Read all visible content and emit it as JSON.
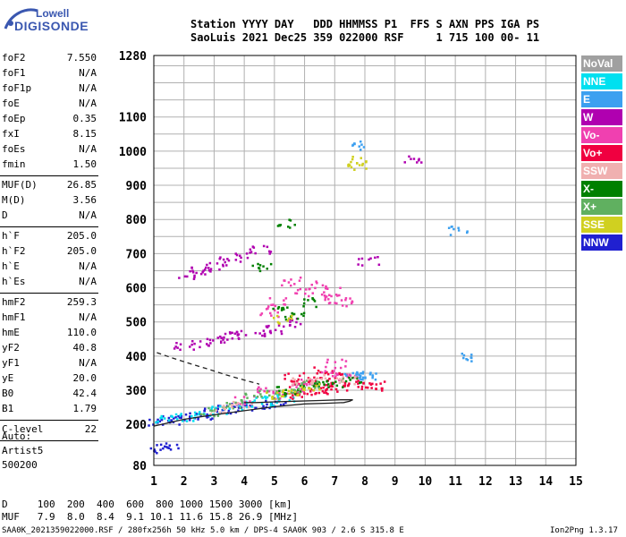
{
  "logo": {
    "line1": "Lowell",
    "line2": "DIGISONDE"
  },
  "header": {
    "labels": "Station YYYY DAY   DDD HHMMSS P1  FFS S AXN PPS IGA PS",
    "values": "SaoLuis 2021 Dec25 359 022000 RSF     1 715 100 00- 11"
  },
  "params": [
    {
      "group": 1,
      "label": "foF2",
      "value": "7.550"
    },
    {
      "group": 1,
      "label": "foF1",
      "value": "N/A"
    },
    {
      "group": 1,
      "label": "foF1p",
      "value": "N/A"
    },
    {
      "group": 1,
      "label": "foE",
      "value": "N/A"
    },
    {
      "group": 1,
      "label": "foEp",
      "value": "0.35"
    },
    {
      "group": 1,
      "label": "fxI",
      "value": "8.15"
    },
    {
      "group": 1,
      "label": "foEs",
      "value": "N/A"
    },
    {
      "group": 1,
      "label": "fmin",
      "value": "1.50"
    },
    {
      "group": 2,
      "label": "MUF(D)",
      "value": "26.85"
    },
    {
      "group": 2,
      "label": "M(D)",
      "value": "3.56"
    },
    {
      "group": 2,
      "label": "D",
      "value": "N/A"
    },
    {
      "group": 3,
      "label": "h`F",
      "value": "205.0"
    },
    {
      "group": 3,
      "label": "h`F2",
      "value": "205.0"
    },
    {
      "group": 3,
      "label": "h`E",
      "value": "N/A"
    },
    {
      "group": 3,
      "label": "h`Es",
      "value": "N/A"
    },
    {
      "group": 4,
      "label": "hmF2",
      "value": "259.3"
    },
    {
      "group": 4,
      "label": "hmF1",
      "value": "N/A"
    },
    {
      "group": 4,
      "label": "hmE",
      "value": "110.0"
    },
    {
      "group": 4,
      "label": "yF2",
      "value": "40.8"
    },
    {
      "group": 4,
      "label": "yF1",
      "value": "N/A"
    },
    {
      "group": 4,
      "label": "yE",
      "value": "20.0"
    },
    {
      "group": 4,
      "label": "B0",
      "value": "42.4"
    },
    {
      "group": 4,
      "label": "B1",
      "value": "1.79"
    },
    {
      "group": 5,
      "label": "C-level",
      "value": "22"
    }
  ],
  "autoscale": {
    "line1": "Auto:",
    "line2": "Artist5",
    "line3": "500200"
  },
  "legend": [
    {
      "label": "NoVal",
      "color": "#a0a0a0"
    },
    {
      "label": "NNE",
      "color": "#00e0f0"
    },
    {
      "label": "E",
      "color": "#3ca0f0"
    },
    {
      "label": "W",
      "color": "#b000b0"
    },
    {
      "label": "Vo-",
      "color": "#f040b0"
    },
    {
      "label": "Vo+",
      "color": "#f00040"
    },
    {
      "label": "SSW",
      "color": "#f0b0b0"
    },
    {
      "label": "X-",
      "color": "#008000"
    },
    {
      "label": "X+",
      "color": "#60b060"
    },
    {
      "label": "SSE",
      "color": "#d0d020"
    },
    {
      "label": "NNW",
      "color": "#2020d0"
    }
  ],
  "muf_table": {
    "row1": "D     100  200  400  600  800 1000 1500 3000 [km]",
    "row2": "MUF   7.9  8.0  8.4  9.1 10.1 11.6 15.8 26.9 [MHz]"
  },
  "footer": {
    "left": "SAA0K_2021359022000.RSF / 280fx256h 50 kHz 5.0 km / DPS-4 SAA0K 903 / 2.6 S 315.8 E",
    "right": "Ion2Png 1.3.17"
  },
  "chart_data": {
    "type": "scatter",
    "title": "",
    "xlabel": "",
    "ylabel": "",
    "xlim": [
      1,
      15
    ],
    "ylim": [
      80,
      1280
    ],
    "x_ticks": [
      1,
      2,
      3,
      4,
      5,
      6,
      7,
      8,
      9,
      10,
      11,
      12,
      13,
      14,
      15
    ],
    "y_tick_labels": [
      80,
      200,
      300,
      400,
      500,
      600,
      700,
      800,
      900,
      1000,
      1100,
      1280
    ],
    "grid": true,
    "legend_placement": "right",
    "series": [
      {
        "color": "#2020d0",
        "points": [
          [
            1.1,
            210
          ],
          [
            1.5,
            215
          ],
          [
            1.8,
            220
          ],
          [
            2.2,
            225
          ],
          [
            2.6,
            230
          ],
          [
            3.0,
            240
          ],
          [
            3.4,
            245
          ],
          [
            3.8,
            250
          ],
          [
            4.2,
            255
          ],
          [
            4.6,
            262
          ],
          [
            5.0,
            268
          ],
          [
            1.2,
            130
          ],
          [
            1.5,
            135
          ]
        ]
      },
      {
        "color": "#00e0f0",
        "points": [
          [
            1.3,
            215
          ],
          [
            2.0,
            225
          ],
          [
            2.6,
            235
          ],
          [
            3.2,
            245
          ],
          [
            4.0,
            258
          ],
          [
            4.6,
            268
          ],
          [
            5.0,
            278
          ],
          [
            5.6,
            282
          ]
        ]
      },
      {
        "color": "#f00040",
        "points": [
          [
            5.6,
            288
          ],
          [
            6.0,
            295
          ],
          [
            6.4,
            300
          ],
          [
            6.8,
            308
          ],
          [
            7.2,
            312
          ],
          [
            7.6,
            318
          ],
          [
            8.0,
            318
          ],
          [
            8.3,
            315
          ],
          [
            5.8,
            320
          ],
          [
            6.4,
            330
          ],
          [
            6.6,
            360
          ],
          [
            5.6,
            340
          ],
          [
            7.0,
            340
          ]
        ]
      },
      {
        "color": "#f040b0",
        "points": [
          [
            5.2,
            290
          ],
          [
            5.8,
            310
          ],
          [
            6.2,
            330
          ],
          [
            6.8,
            350
          ],
          [
            7.4,
            340
          ],
          [
            7.0,
            380
          ],
          [
            4.6,
            300
          ],
          [
            4.0,
            275
          ],
          [
            5.5,
            620
          ],
          [
            6.0,
            590
          ],
          [
            6.4,
            610
          ],
          [
            6.8,
            590
          ],
          [
            7.0,
            570
          ],
          [
            7.2,
            560
          ],
          [
            5.1,
            560
          ],
          [
            4.8,
            530
          ]
        ]
      },
      {
        "color": "#b000b0",
        "points": [
          [
            2.0,
            430
          ],
          [
            2.5,
            440
          ],
          [
            3.0,
            450
          ],
          [
            3.5,
            460
          ],
          [
            4.0,
            465
          ],
          [
            4.5,
            470
          ],
          [
            5.0,
            480
          ],
          [
            5.5,
            500
          ],
          [
            2.1,
            640
          ],
          [
            2.5,
            655
          ],
          [
            3.0,
            665
          ],
          [
            3.5,
            680
          ],
          [
            4.0,
            695
          ],
          [
            4.5,
            715
          ],
          [
            8.1,
            680
          ],
          [
            9.6,
            975
          ]
        ]
      },
      {
        "color": "#008000",
        "points": [
          [
            5.4,
            300
          ],
          [
            6.0,
            310
          ],
          [
            6.5,
            320
          ],
          [
            7.0,
            325
          ],
          [
            7.5,
            330
          ],
          [
            5.2,
            540
          ],
          [
            5.6,
            520
          ],
          [
            6.2,
            560
          ],
          [
            5.4,
            790
          ],
          [
            4.5,
            660
          ]
        ]
      },
      {
        "color": "#60b060",
        "points": [
          [
            4.2,
            280
          ],
          [
            4.8,
            290
          ],
          [
            5.5,
            305
          ],
          [
            6.2,
            318
          ],
          [
            2.8,
            240
          ],
          [
            3.6,
            255
          ]
        ]
      },
      {
        "color": "#d0d020",
        "points": [
          [
            5.0,
            285
          ],
          [
            5.6,
            300
          ],
          [
            6.2,
            315
          ],
          [
            7.7,
            960
          ],
          [
            7.7,
            975
          ],
          [
            5.3,
            510
          ]
        ]
      },
      {
        "color": "#3ca0f0",
        "points": [
          [
            7.6,
            345
          ],
          [
            7.9,
            350
          ],
          [
            8.1,
            340
          ],
          [
            7.7,
            1020
          ],
          [
            11.1,
            770
          ],
          [
            11.5,
            400
          ]
        ]
      },
      {
        "color": "#f0b0b0",
        "points": [
          [
            3.1,
            245
          ],
          [
            3.9,
            260
          ],
          [
            5.9,
            325
          ],
          [
            6.5,
            335
          ],
          [
            7.3,
            330
          ]
        ]
      }
    ],
    "traces": [
      {
        "style": "solid",
        "points": [
          [
            1.0,
            195
          ],
          [
            2.0,
            215
          ],
          [
            3.0,
            228
          ],
          [
            4.0,
            240
          ],
          [
            5.0,
            252
          ],
          [
            6.0,
            260
          ],
          [
            6.8,
            262
          ],
          [
            7.3,
            264
          ],
          [
            7.5,
            268
          ],
          [
            7.6,
            272
          ],
          [
            7.2,
            272
          ],
          [
            6.5,
            270
          ],
          [
            5.8,
            268
          ],
          [
            5.0,
            266
          ],
          [
            4.4,
            264
          ],
          [
            4.0,
            264
          ]
        ]
      },
      {
        "style": "dashed",
        "points": [
          [
            1.1,
            410
          ],
          [
            1.6,
            395
          ],
          [
            2.2,
            378
          ],
          [
            2.8,
            362
          ],
          [
            3.4,
            345
          ],
          [
            4.0,
            330
          ],
          [
            4.5,
            318
          ]
        ]
      }
    ]
  }
}
